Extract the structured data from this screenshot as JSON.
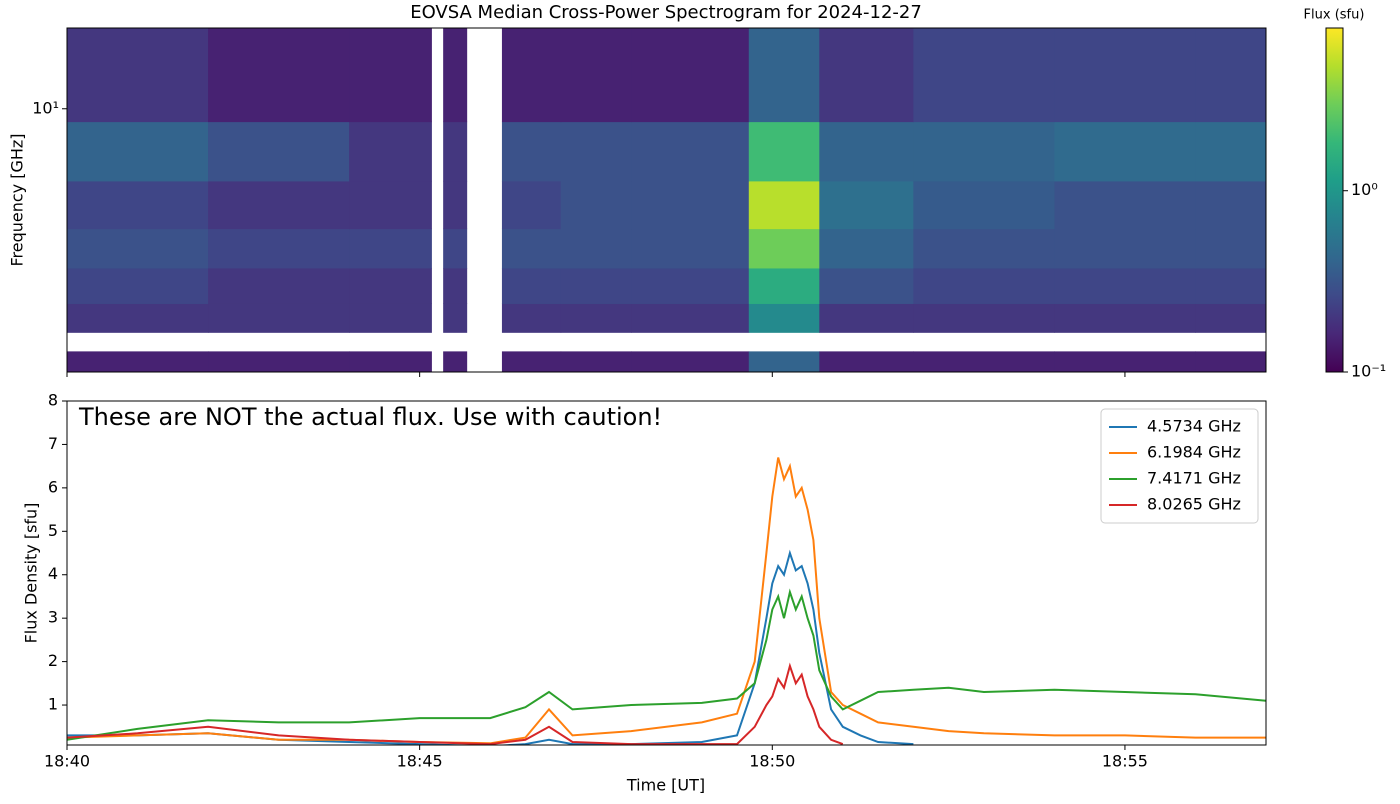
{
  "chart_data": [
    {
      "type": "heatmap",
      "title": "EOVSA Median Cross-Power Spectrogram for 2024-12-27",
      "ylabel": "Frequency [GHz]",
      "yscale": "log",
      "x_edges": [
        "18:40:00",
        "18:42:00",
        "18:44:00",
        "18:45:10",
        "18:45:20",
        "18:45:40",
        "18:46:10",
        "18:47:00",
        "18:48:00",
        "18:49:40",
        "18:50:40",
        "18:52:00",
        "18:54:00",
        "18:56:00",
        "18:57:00"
      ],
      "y_edges": [
        3.5,
        3.8,
        4.1,
        4.6,
        5.3,
        6.2,
        7.5,
        9.5,
        13.8
      ],
      "z": [
        [
          0.15,
          0.15,
          0.15,
          null,
          0.15,
          null,
          0.15,
          0.15,
          0.15,
          0.4,
          0.15,
          0.15,
          0.15,
          0.15
        ],
        [
          null,
          null,
          null,
          null,
          null,
          null,
          null,
          null,
          null,
          null,
          null,
          null,
          null,
          null
        ],
        [
          0.2,
          0.2,
          0.2,
          null,
          0.2,
          null,
          0.2,
          0.2,
          0.2,
          0.8,
          0.2,
          0.2,
          0.2,
          0.2
        ],
        [
          0.25,
          0.2,
          0.2,
          null,
          0.2,
          null,
          0.25,
          0.25,
          0.25,
          1.5,
          0.3,
          0.25,
          0.25,
          0.25
        ],
        [
          0.3,
          0.25,
          0.25,
          null,
          0.25,
          null,
          0.3,
          0.3,
          0.3,
          3,
          0.4,
          0.3,
          0.3,
          0.3
        ],
        [
          0.25,
          0.2,
          0.2,
          null,
          0.2,
          null,
          0.25,
          0.3,
          0.3,
          5,
          0.5,
          0.35,
          0.3,
          0.3
        ],
        [
          0.4,
          0.3,
          0.2,
          null,
          0.2,
          null,
          0.3,
          0.3,
          0.3,
          2,
          0.4,
          0.4,
          0.45,
          0.45
        ],
        [
          0.2,
          0.15,
          0.15,
          null,
          0.15,
          null,
          0.15,
          0.15,
          0.15,
          0.4,
          0.2,
          0.25,
          0.25,
          0.25
        ]
      ],
      "xlim": [
        "18:40:00",
        "18:57:00"
      ],
      "xticks": [
        "18:40",
        "18:45",
        "18:50",
        "18:55"
      ],
      "ylim": [
        3.5,
        13.8
      ],
      "yticks": [
        {
          "value": 10,
          "label": "10¹"
        }
      ],
      "colorbar": {
        "label": "Flux (sfu)",
        "scale": "log",
        "colormap": "viridis",
        "lim": [
          0.1,
          7.9
        ],
        "ticks": [
          {
            "value": 0.1,
            "label": "10⁻¹"
          },
          {
            "value": 1,
            "label": "10⁰"
          }
        ]
      }
    },
    {
      "type": "line",
      "xlabel": "Time [UT]",
      "ylabel": "Flux Density [sfu]",
      "annotation": "These are NOT the actual flux. Use with caution!",
      "legend": "upper right",
      "x": [
        "18:40:00",
        "18:41:00",
        "18:42:00",
        "18:43:00",
        "18:44:00",
        "18:45:00",
        "18:46:00",
        "18:46:30",
        "18:46:50",
        "18:47:10",
        "18:48:00",
        "18:49:00",
        "18:49:30",
        "18:49:45",
        "18:49:55",
        "18:50:00",
        "18:50:05",
        "18:50:10",
        "18:50:15",
        "18:50:20",
        "18:50:25",
        "18:50:30",
        "18:50:35",
        "18:50:40",
        "18:50:50",
        "18:51:00",
        "18:51:15",
        "18:51:30",
        "18:52:00",
        "18:52:30",
        "18:53:00",
        "18:54:00",
        "18:55:00",
        "18:56:00",
        "18:57:00"
      ],
      "series": [
        {
          "name": "4.5734 GHz",
          "color": "#1f77b4",
          "values": [
            0.3,
            0.3,
            0.35,
            0.2,
            0.15,
            0.1,
            0.05,
            0.1,
            0.2,
            0.1,
            0.1,
            0.15,
            0.3,
            1.5,
            3.0,
            3.8,
            4.2,
            4.0,
            4.5,
            4.1,
            4.2,
            3.8,
            3.2,
            2.2,
            0.9,
            0.5,
            0.3,
            0.15,
            0.1,
            null,
            null,
            null,
            null,
            null,
            null
          ]
        },
        {
          "name": "6.1984 GHz",
          "color": "#ff7f0e",
          "values": [
            0.25,
            0.3,
            0.35,
            0.2,
            0.2,
            0.15,
            0.12,
            0.25,
            0.9,
            0.3,
            0.4,
            0.6,
            0.8,
            2.0,
            4.5,
            5.8,
            6.7,
            6.2,
            6.5,
            5.8,
            6.0,
            5.5,
            4.8,
            3.0,
            1.3,
            1.0,
            0.8,
            0.6,
            0.5,
            0.4,
            0.35,
            0.3,
            0.3,
            0.25,
            0.25
          ]
        },
        {
          "name": "7.4171 GHz",
          "color": "#2ca02c",
          "values": [
            0.2,
            0.45,
            0.65,
            0.6,
            0.6,
            0.7,
            0.7,
            0.95,
            1.3,
            0.9,
            1.0,
            1.05,
            1.15,
            1.5,
            2.5,
            3.2,
            3.5,
            3.0,
            3.6,
            3.2,
            3.5,
            3.0,
            2.6,
            1.8,
            1.2,
            0.9,
            1.1,
            1.3,
            1.35,
            1.4,
            1.3,
            1.35,
            1.3,
            1.25,
            1.1
          ]
        },
        {
          "name": "8.0265 GHz",
          "color": "#d62728",
          "values": [
            0.25,
            0.35,
            0.5,
            0.3,
            0.2,
            0.15,
            0.1,
            0.2,
            0.5,
            0.15,
            0.1,
            0.1,
            0.1,
            0.5,
            1.0,
            1.2,
            1.6,
            1.4,
            1.9,
            1.5,
            1.7,
            1.2,
            0.9,
            0.5,
            0.2,
            0.1,
            null,
            null,
            null,
            null,
            null,
            null,
            null,
            null,
            null
          ]
        }
      ],
      "xlim": [
        "18:40:00",
        "18:57:00"
      ],
      "xticks": [
        "18:40",
        "18:45",
        "18:50",
        "18:55"
      ],
      "ylim": [
        0.08,
        8
      ],
      "yticks": [
        1,
        2,
        3,
        4,
        5,
        6,
        7,
        8
      ]
    }
  ]
}
